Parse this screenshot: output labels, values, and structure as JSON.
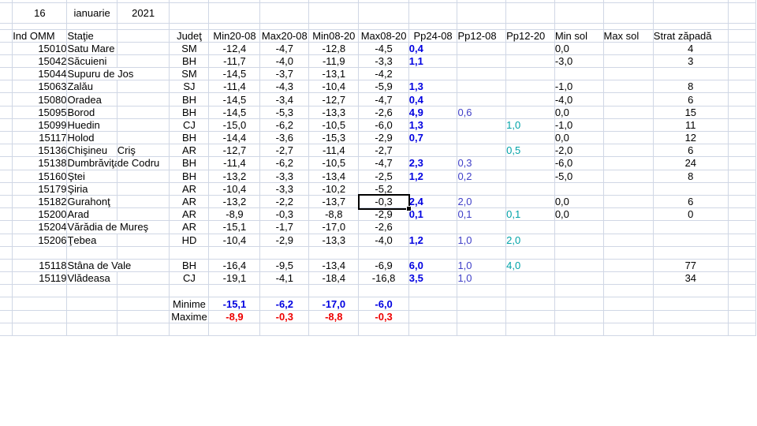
{
  "app": "spreadsheet-weather-observations",
  "grid_color": "#d0d7e5",
  "colors": {
    "pp24_value_blue_bold": "#0000e0",
    "pp12_value_blue": "#4040c8",
    "pp12_20_value_teal": "#00a3a8",
    "minima_blue": "#0000e0",
    "maxima_red": "#ee0000",
    "text": "#000000"
  },
  "title_row": {
    "day": "16",
    "month": "ianuarie",
    "year": "2021"
  },
  "header": {
    "ind": "Ind OMM",
    "statie": "Staţie",
    "judet": "Judeţ",
    "min2008": "Min20-08",
    "max2008": "Max20-08",
    "min0820": "Min08-20",
    "max0820": "Max08-20",
    "pp2408": "Pp24-08",
    "pp1208": "Pp12-08",
    "pp1220": "Pp12-20",
    "minsol": "Min sol",
    "maxsol": "Max sol",
    "strat": "Strat zăpadă"
  },
  "rows": [
    {
      "type": "data",
      "id": "15010",
      "station": "Satu Mare",
      "station2": "",
      "span": false,
      "judet": "SM",
      "min2008": "-12,4",
      "max2008": "-4,7",
      "min0820": "-12,8",
      "max0820": "-4,5",
      "pp2408": "0,4",
      "pp1208": "",
      "pp1220": "",
      "minsol": "0,0",
      "maxsol": "",
      "strat": "4"
    },
    {
      "type": "data",
      "id": "15042",
      "station": "Săcuieni",
      "station2": "",
      "span": false,
      "judet": "BH",
      "min2008": "-11,7",
      "max2008": "-4,0",
      "min0820": "-11,9",
      "max0820": "-3,3",
      "pp2408": "1,1",
      "pp1208": "",
      "pp1220": "",
      "minsol": "-3,0",
      "maxsol": "",
      "strat": "3"
    },
    {
      "type": "data",
      "id": "15044",
      "station": "Supuru de Jos",
      "station2": "",
      "span": true,
      "judet": "SM",
      "min2008": "-14,5",
      "max2008": "-3,7",
      "min0820": "-13,1",
      "max0820": "-4,2",
      "pp2408": "",
      "pp1208": "",
      "pp1220": "",
      "minsol": "",
      "maxsol": "",
      "strat": ""
    },
    {
      "type": "data",
      "id": "15063",
      "station": "Zalău",
      "station2": "",
      "span": false,
      "judet": "SJ",
      "min2008": "-11,4",
      "max2008": "-4,3",
      "min0820": "-10,4",
      "max0820": "-5,9",
      "pp2408": "1,3",
      "pp1208": "",
      "pp1220": "",
      "minsol": "-1,0",
      "maxsol": "",
      "strat": "8"
    },
    {
      "type": "data",
      "id": "15080",
      "station": "Oradea",
      "station2": "",
      "span": false,
      "judet": "BH",
      "min2008": "-14,5",
      "max2008": "-3,4",
      "min0820": "-12,7",
      "max0820": "-4,7",
      "pp2408": "0,4",
      "pp1208": "",
      "pp1220": "",
      "minsol": "-4,0",
      "maxsol": "",
      "strat": "6"
    },
    {
      "type": "data",
      "id": "15095",
      "station": "Borod",
      "station2": "",
      "span": false,
      "judet": "BH",
      "min2008": "-14,5",
      "max2008": "-5,3",
      "min0820": "-13,3",
      "max0820": "-2,6",
      "pp2408": "4,9",
      "pp1208": "0,6",
      "pp1220": "",
      "minsol": "0,0",
      "maxsol": "",
      "strat": "15"
    },
    {
      "type": "data",
      "id": "15099",
      "station": "Huedin",
      "station2": "",
      "span": false,
      "judet": "CJ",
      "min2008": "-15,0",
      "max2008": "-6,2",
      "min0820": "-10,5",
      "max0820": "-6,0",
      "pp2408": "1,3",
      "pp1208": "",
      "pp1220": "1,0",
      "minsol": "-1,0",
      "maxsol": "",
      "strat": "11"
    },
    {
      "type": "data",
      "id": "15117",
      "station": "Holod",
      "station2": "",
      "span": false,
      "judet": "BH",
      "min2008": "-14,4",
      "max2008": "-3,6",
      "min0820": "-15,3",
      "max0820": "-2,9",
      "pp2408": "0,7",
      "pp1208": "",
      "pp1220": "",
      "minsol": "0,0",
      "maxsol": "",
      "strat": "12"
    },
    {
      "type": "data",
      "id": "15136",
      "station": "Chişineu",
      "station2": "Criş",
      "span": false,
      "judet": "AR",
      "min2008": "-12,7",
      "max2008": "-2,7",
      "min0820": "-11,4",
      "max0820": "-2,7",
      "pp2408": "",
      "pp1208": "",
      "pp1220": "0,5",
      "minsol": "-2,0",
      "maxsol": "",
      "strat": "6"
    },
    {
      "type": "data",
      "id": "15138",
      "station": "Dumbrăviţa",
      "station2": "de Codru",
      "span": false,
      "judet": "BH",
      "min2008": "-11,4",
      "max2008": "-6,2",
      "min0820": "-10,5",
      "max0820": "-4,7",
      "pp2408": "2,3",
      "pp1208": "0,3",
      "pp1220": "",
      "minsol": "-6,0",
      "maxsol": "",
      "strat": "24"
    },
    {
      "type": "data",
      "id": "15160",
      "station": "Ştei",
      "station2": "",
      "span": false,
      "judet": "BH",
      "min2008": "-13,2",
      "max2008": "-3,3",
      "min0820": "-13,4",
      "max0820": "-2,5",
      "pp2408": "1,2",
      "pp1208": "0,2",
      "pp1220": "",
      "minsol": "-5,0",
      "maxsol": "",
      "strat": "8"
    },
    {
      "type": "data",
      "id": "15179",
      "station": "Şiria",
      "station2": "",
      "span": false,
      "judet": "AR",
      "min2008": "-10,4",
      "max2008": "-3,3",
      "min0820": "-10,2",
      "max0820": "-5,2",
      "pp2408": "",
      "pp1208": "",
      "pp1220": "",
      "minsol": "",
      "maxsol": "",
      "strat": ""
    },
    {
      "type": "data",
      "id": "15182",
      "station": "Gurahonţ",
      "station2": "",
      "span": false,
      "judet": "AR",
      "min2008": "-13,2",
      "max2008": "-2,2",
      "min0820": "-13,7",
      "max0820": "-0,3",
      "pp2408": "2,4",
      "pp1208": "2,0",
      "pp1220": "",
      "minsol": "0,0",
      "maxsol": "",
      "strat": "6"
    },
    {
      "type": "data",
      "id": "15200",
      "station": "Arad",
      "station2": "",
      "span": false,
      "judet": "AR",
      "min2008": "-8,9",
      "max2008": "-0,3",
      "min0820": "-8,8",
      "max0820": "-2,9",
      "pp2408": "0,1",
      "pp1208": "0,1",
      "pp1220": "0,1",
      "minsol": "0,0",
      "maxsol": "",
      "strat": "0"
    },
    {
      "type": "data",
      "id": "15204",
      "station": "Vărădia de Mureş",
      "station2": "",
      "span": true,
      "judet": "AR",
      "min2008": "-15,1",
      "max2008": "-1,7",
      "min0820": "-17,0",
      "max0820": "-2,6",
      "pp2408": "",
      "pp1208": "",
      "pp1220": "",
      "minsol": "",
      "maxsol": "",
      "strat": ""
    },
    {
      "type": "data",
      "id": "15206",
      "station": "Ţebea",
      "station2": "",
      "span": false,
      "judet": "HD",
      "min2008": "-10,4",
      "max2008": "-2,9",
      "min0820": "-13,3",
      "max0820": "-4,0",
      "pp2408": "1,2",
      "pp1208": "1,0",
      "pp1220": "2,0",
      "minsol": "",
      "maxsol": "",
      "strat": ""
    },
    {
      "type": "spacer"
    },
    {
      "type": "data",
      "id": "15118",
      "station": "Stâna de Vale",
      "station2": "",
      "span": true,
      "judet": "BH",
      "min2008": "-16,4",
      "max2008": "-9,5",
      "min0820": "-13,4",
      "max0820": "-6,9",
      "pp2408": "6,0",
      "pp1208": "1,0",
      "pp1220": "4,0",
      "minsol": "",
      "maxsol": "",
      "strat": "77"
    },
    {
      "type": "data",
      "id": "15119",
      "station": "Vlădeasa",
      "station2": "",
      "span": false,
      "judet": "CJ",
      "min2008": "-19,1",
      "max2008": "-4,1",
      "min0820": "-18,4",
      "max0820": "-16,8",
      "pp2408": "3,5",
      "pp1208": "1,0",
      "pp1220": "",
      "minsol": "",
      "maxsol": "",
      "strat": "34"
    },
    {
      "type": "spacer"
    },
    {
      "type": "summary",
      "style": "min",
      "label": "Minime",
      "min2008": "-15,1",
      "max2008": "-6,2",
      "min0820": "-17,0",
      "max0820": "-6,0"
    },
    {
      "type": "summary",
      "style": "max",
      "label": "Maxime",
      "min2008": "-8,9",
      "max2008": "-0,3",
      "min0820": "-8,8",
      "max0820": "-0,3"
    },
    {
      "type": "spacer"
    }
  ],
  "selection": {
    "row": "15182",
    "column": "max0820",
    "value": "-0,3"
  }
}
